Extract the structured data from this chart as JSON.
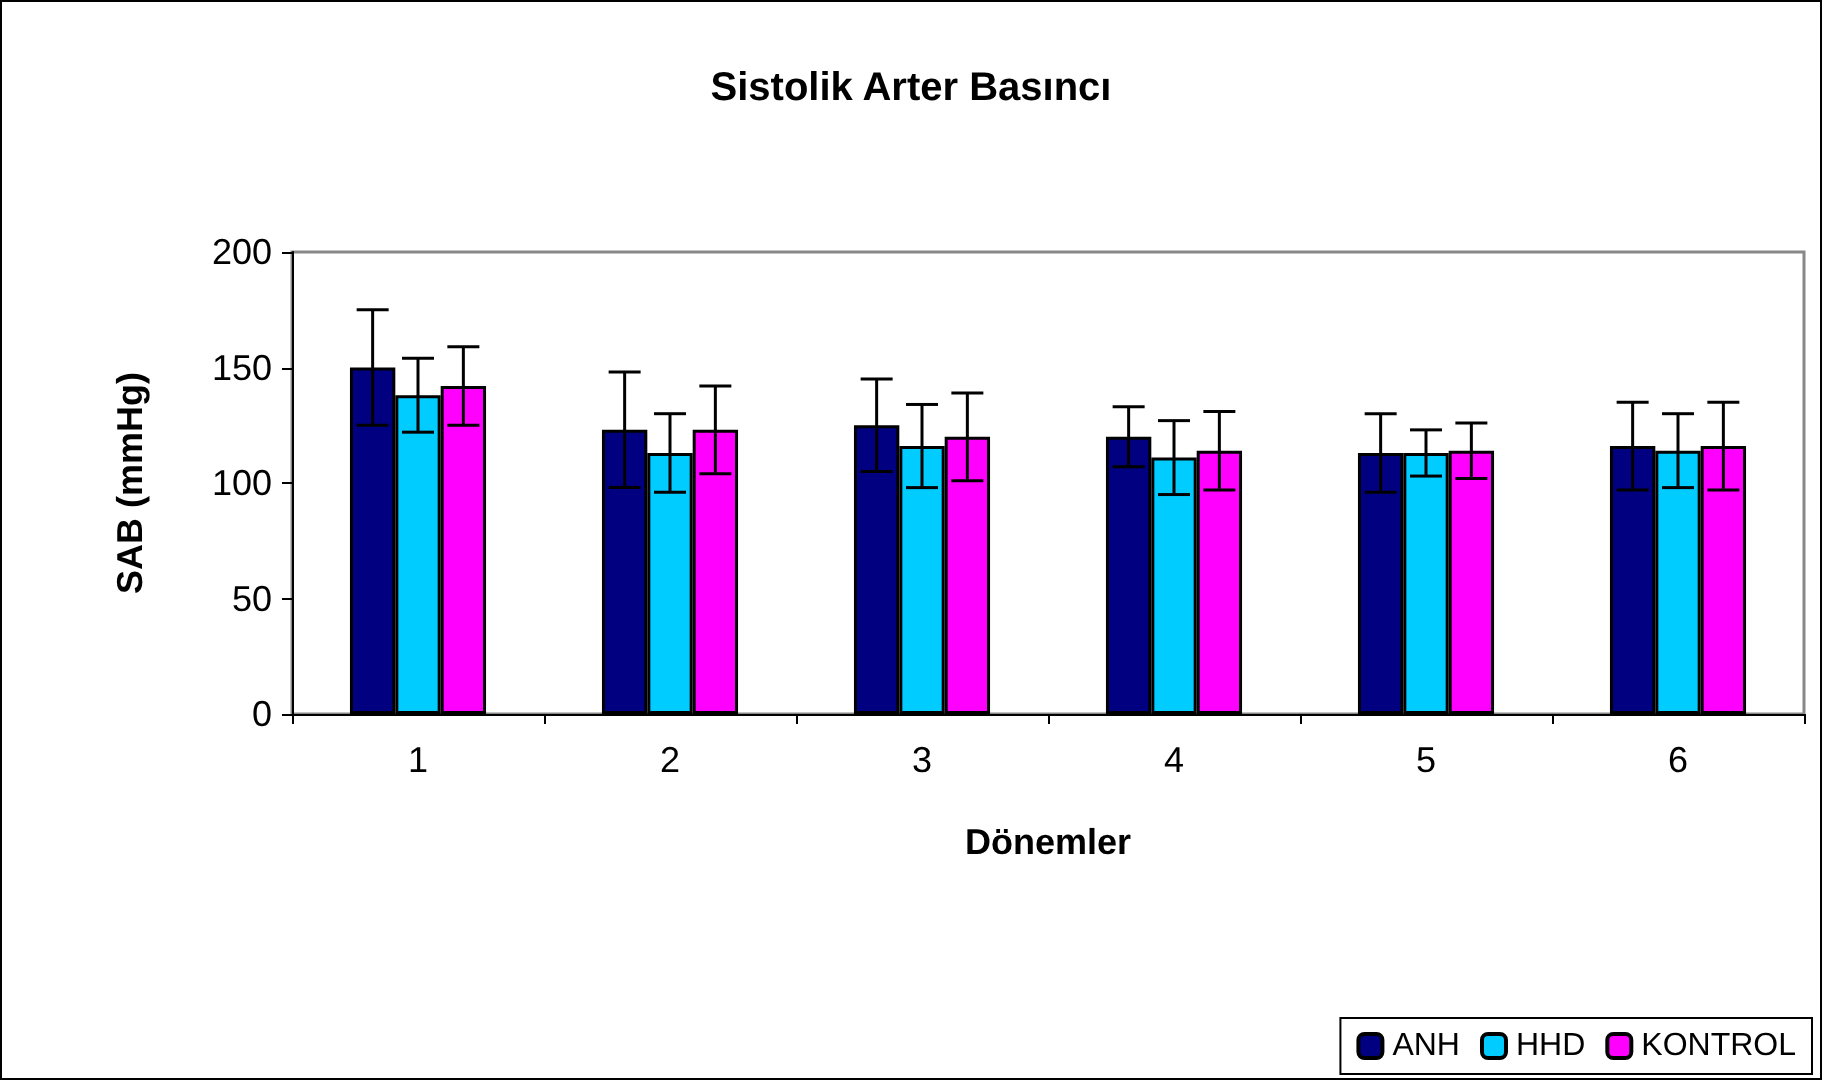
{
  "chart_data": {
    "type": "bar",
    "title": "Sistolik Arter Basıncı",
    "xlabel": "Dönemler",
    "ylabel": "SAB (mmHg)",
    "categories": [
      "1",
      "2",
      "3",
      "4",
      "5",
      "6"
    ],
    "series": [
      {
        "name": "ANH",
        "color": "#000080",
        "values": [
          150,
          123,
          125,
          120,
          113,
          116
        ],
        "errors": [
          25,
          25,
          20,
          13,
          17,
          19
        ]
      },
      {
        "name": "HHD",
        "color": "#00ccff",
        "values": [
          138,
          113,
          116,
          111,
          113,
          114
        ],
        "errors": [
          16,
          17,
          18,
          16,
          10,
          16
        ]
      },
      {
        "name": "KONTROL",
        "color": "#ff00ff",
        "values": [
          142,
          123,
          120,
          114,
          114,
          116
        ],
        "errors": [
          17,
          19,
          19,
          17,
          12,
          19
        ]
      }
    ],
    "ylim": [
      0,
      200
    ],
    "yticks": [
      0,
      50,
      100,
      150,
      200
    ],
    "grid": false,
    "legend": "bottom right"
  }
}
